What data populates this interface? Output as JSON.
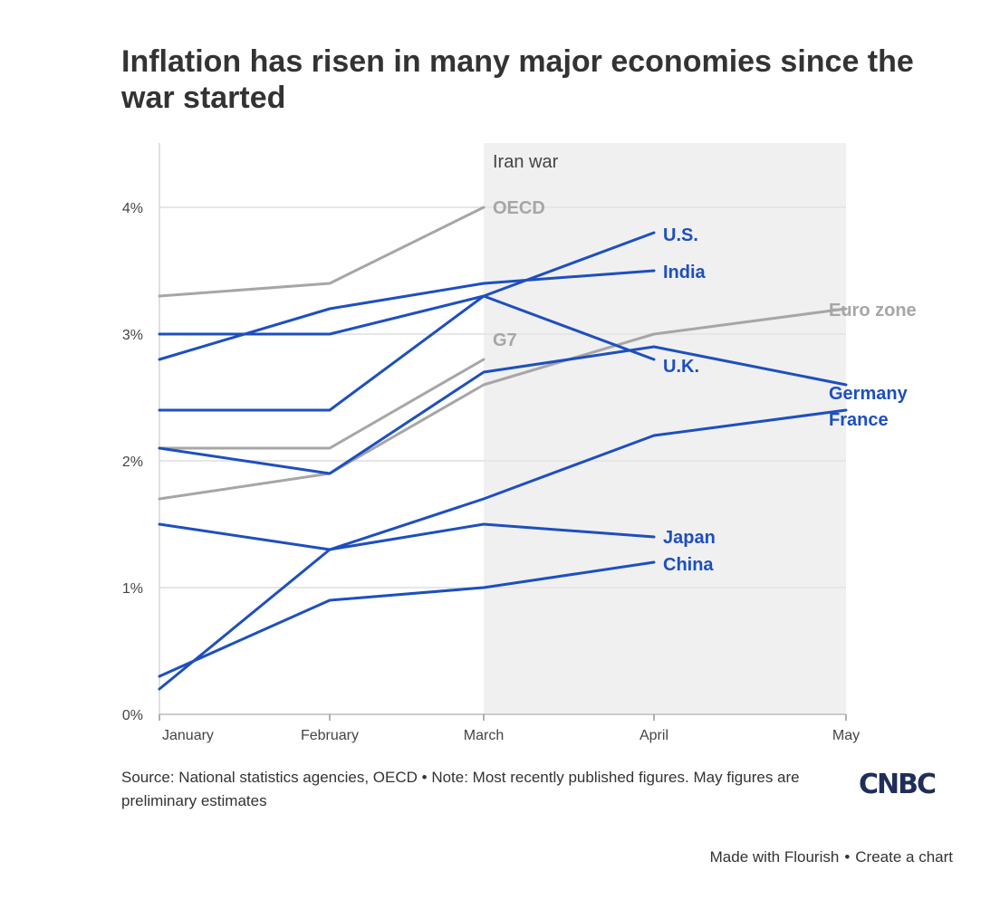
{
  "title": "Inflation has risen in many major economies since the war started",
  "source_note": "Source: National statistics agencies, OECD • Note: Most recently published figures. May figures are preliminary estimates",
  "logo_text": "CNBC",
  "credit": {
    "made_with": "Made with Flourish",
    "separator": "•",
    "create": "Create a chart"
  },
  "colors": {
    "highlight": "#1d4fbf",
    "muted": "#a6a6a6",
    "shade": "#f0f0f0",
    "grid": "#e6e6e6"
  },
  "chart_data": {
    "type": "line",
    "x": [
      "January",
      "February",
      "March",
      "April",
      "May"
    ],
    "ylim": [
      0,
      4.5
    ],
    "y_ticks": [
      0,
      1,
      2,
      3,
      4
    ],
    "y_tick_labels": [
      "0%",
      "1%",
      "2%",
      "3%",
      "4%"
    ],
    "grid": true,
    "shaded_region": {
      "label": "Iran war",
      "from": "March",
      "to": "May"
    },
    "series": [
      {
        "name": "OECD",
        "group": "muted",
        "values": [
          3.3,
          3.4,
          4.0,
          null,
          null
        ]
      },
      {
        "name": "G7",
        "group": "muted",
        "values": [
          2.1,
          2.1,
          2.8,
          null,
          null
        ]
      },
      {
        "name": "Euro zone",
        "group": "muted",
        "values": [
          1.7,
          1.9,
          2.6,
          3.0,
          3.2
        ]
      },
      {
        "name": "U.S.",
        "group": "highlight",
        "values": [
          2.4,
          2.4,
          3.3,
          3.8,
          null
        ]
      },
      {
        "name": "India",
        "group": "highlight",
        "values": [
          2.8,
          3.2,
          3.4,
          3.5,
          null
        ]
      },
      {
        "name": "U.K.",
        "group": "highlight",
        "values": [
          3.0,
          3.0,
          3.3,
          2.8,
          null
        ]
      },
      {
        "name": "Germany",
        "group": "highlight",
        "values": [
          2.1,
          1.9,
          2.7,
          2.9,
          2.6
        ]
      },
      {
        "name": "France",
        "group": "highlight",
        "values": [
          0.2,
          1.3,
          1.7,
          2.2,
          2.4
        ]
      },
      {
        "name": "Japan",
        "group": "highlight",
        "values": [
          1.5,
          1.3,
          1.5,
          1.4,
          null
        ]
      },
      {
        "name": "China",
        "group": "highlight",
        "values": [
          0.3,
          0.9,
          1.0,
          1.2,
          null
        ]
      }
    ]
  }
}
